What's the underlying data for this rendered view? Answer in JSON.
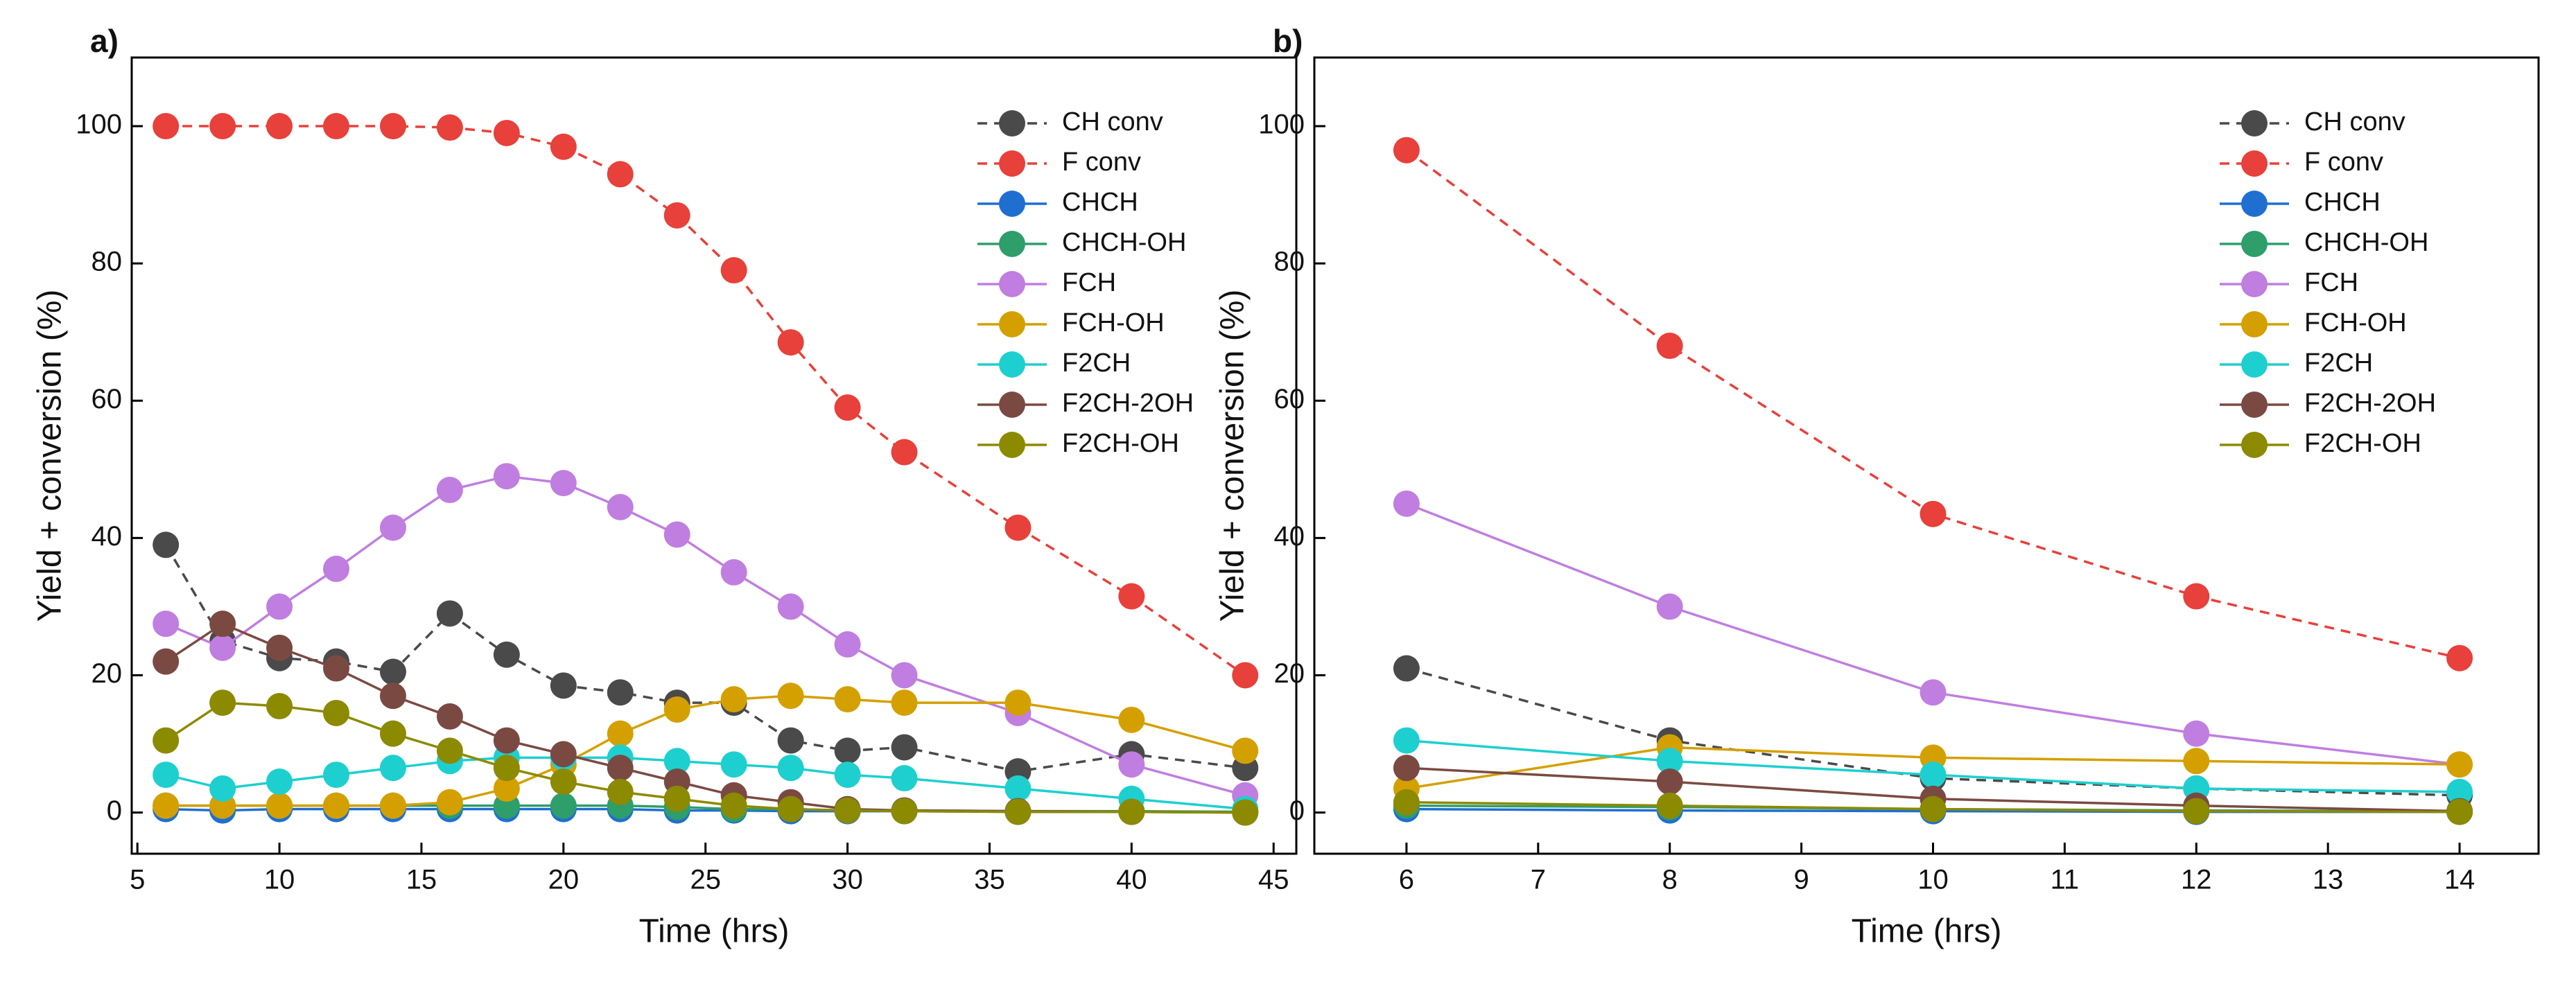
{
  "chart_data": [
    {
      "type": "line",
      "panel_label": "a)",
      "x_label": "Time (hrs)",
      "y_label": "Yield + conversion (%)",
      "x": [
        6,
        8,
        10,
        12,
        14,
        16,
        18,
        20,
        22,
        24,
        26,
        28,
        30,
        32,
        36,
        40,
        44
      ],
      "xlim": [
        4.8,
        45.8
      ],
      "xticks": [
        5,
        10,
        15,
        20,
        25,
        30,
        35,
        40,
        45
      ],
      "ylim": [
        -6,
        110
      ],
      "yticks": [
        0,
        20,
        40,
        60,
        80,
        100
      ],
      "legend": "upper right",
      "series": [
        {
          "name": "CH conv",
          "color": "#4a4a4a",
          "line_style": "dashed",
          "values": [
            39,
            25,
            22.5,
            22,
            20.5,
            29,
            23,
            18.5,
            17.5,
            16,
            16,
            10.5,
            9,
            9.5,
            6,
            8.5,
            6.5
          ]
        },
        {
          "name": "F conv",
          "color": "#e8403a",
          "line_style": "dashed",
          "values": [
            100,
            100,
            100,
            100,
            100,
            99.8,
            99,
            97,
            93,
            87,
            79,
            68.5,
            59,
            52.5,
            41.5,
            31.5,
            20
          ]
        },
        {
          "name": "CHCH",
          "color": "#1f6fd0",
          "line_style": "solid",
          "values": [
            0.5,
            0.3,
            0.5,
            0.5,
            0.5,
            0.5,
            0.5,
            0.5,
            0.5,
            0.3,
            0.3,
            0.2,
            0.2,
            0.2,
            0.1,
            0.1,
            0.1
          ]
        },
        {
          "name": "CHCH-OH",
          "color": "#2e9e6a",
          "line_style": "solid",
          "values": [
            1,
            1,
            1,
            1,
            1,
            1,
            1,
            1,
            1,
            0.8,
            0.5,
            0.5,
            0.3,
            0.3,
            0.2,
            0.2,
            0.1
          ]
        },
        {
          "name": "FCH",
          "color": "#c07ee0",
          "line_style": "solid",
          "values": [
            27.5,
            24,
            30,
            35.5,
            41.5,
            47,
            49,
            48,
            44.5,
            40.5,
            35,
            30,
            24.5,
            20,
            14.5,
            7,
            2.5
          ]
        },
        {
          "name": "FCH-OH",
          "color": "#d4a000",
          "line_style": "solid",
          "values": [
            1,
            1,
            1,
            1,
            1,
            1.5,
            3.5,
            7,
            11.5,
            15,
            16.5,
            17,
            16.5,
            16,
            16,
            13.5,
            9
          ]
        },
        {
          "name": "F2CH",
          "color": "#1ecfcf",
          "line_style": "solid",
          "values": [
            5.5,
            3.5,
            4.5,
            5.5,
            6.5,
            7.5,
            8,
            8,
            8,
            7.5,
            7,
            6.5,
            5.5,
            5,
            3.5,
            2,
            0.5
          ]
        },
        {
          "name": "F2CH-2OH",
          "color": "#7a4a42",
          "line_style": "solid",
          "values": [
            22,
            27.5,
            24,
            21,
            17,
            14,
            10.5,
            8.5,
            6.5,
            4.5,
            2.5,
            1.5,
            0.5,
            0.3,
            0.2,
            0.1,
            0
          ]
        },
        {
          "name": "F2CH-OH",
          "color": "#8c8a00",
          "line_style": "solid",
          "values": [
            10.5,
            16,
            15.5,
            14.5,
            11.5,
            9,
            6.5,
            4.5,
            3,
            2,
            1,
            0.5,
            0.3,
            0.2,
            0.1,
            0.1,
            0
          ]
        }
      ]
    },
    {
      "type": "line",
      "panel_label": "b)",
      "x_label": "Time (hrs)",
      "y_label": "Yield + conversion (%)",
      "x": [
        6,
        8,
        10,
        12,
        14
      ],
      "xlim": [
        5.3,
        14.6
      ],
      "xticks": [
        6,
        7,
        8,
        9,
        10,
        11,
        12,
        13,
        14
      ],
      "ylim": [
        -6,
        110
      ],
      "yticks": [
        0,
        20,
        40,
        60,
        80,
        100
      ],
      "legend": "upper right",
      "series": [
        {
          "name": "CH conv",
          "color": "#4a4a4a",
          "line_style": "dashed",
          "values": [
            21,
            10.5,
            5,
            3.5,
            2.5
          ]
        },
        {
          "name": "F conv",
          "color": "#e8403a",
          "line_style": "dashed",
          "values": [
            96.5,
            68,
            43.5,
            31.5,
            22.5
          ]
        },
        {
          "name": "CHCH",
          "color": "#1f6fd0",
          "line_style": "solid",
          "values": [
            0.5,
            0.3,
            0.2,
            0.1,
            0.1
          ]
        },
        {
          "name": "CHCH-OH",
          "color": "#2e9e6a",
          "line_style": "solid",
          "values": [
            1,
            0.8,
            0.5,
            0.3,
            0.2
          ]
        },
        {
          "name": "FCH",
          "color": "#c07ee0",
          "line_style": "solid",
          "values": [
            45,
            30,
            17.5,
            11.5,
            7
          ]
        },
        {
          "name": "FCH-OH",
          "color": "#d4a000",
          "line_style": "solid",
          "values": [
            3.5,
            9.5,
            8,
            7.5,
            7
          ]
        },
        {
          "name": "F2CH",
          "color": "#1ecfcf",
          "line_style": "solid",
          "values": [
            10.5,
            7.5,
            5.5,
            3.5,
            3
          ]
        },
        {
          "name": "F2CH-2OH",
          "color": "#7a4a42",
          "line_style": "solid",
          "values": [
            6.5,
            4.5,
            2,
            1,
            0.2
          ]
        },
        {
          "name": "F2CH-OH",
          "color": "#8c8a00",
          "line_style": "solid",
          "values": [
            1.5,
            1,
            0.5,
            0.2,
            0.1
          ]
        }
      ]
    }
  ]
}
